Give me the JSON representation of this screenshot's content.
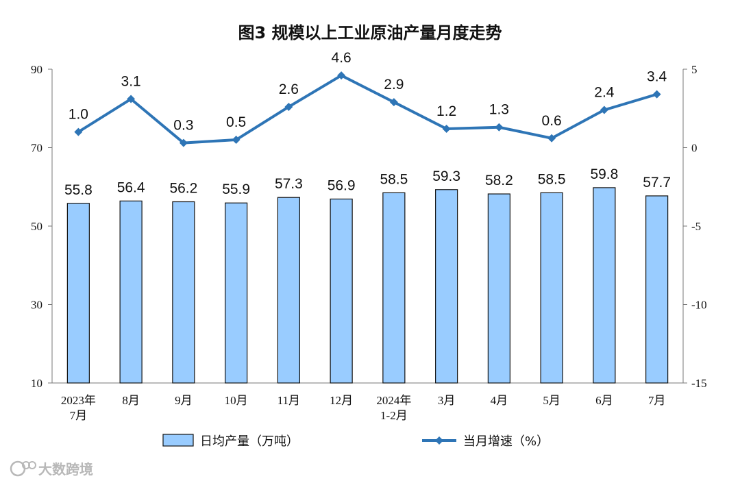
{
  "chart_data": {
    "type": "bar+line",
    "title": "图3  规模以上工业原油产量月度走势",
    "categories": [
      [
        "2023年",
        "7月"
      ],
      [
        "8月"
      ],
      [
        "9月"
      ],
      [
        "10月"
      ],
      [
        "11月"
      ],
      [
        "12月"
      ],
      [
        "2024年",
        "1-2月"
      ],
      [
        "3月"
      ],
      [
        "4月"
      ],
      [
        "5月"
      ],
      [
        "6月"
      ],
      [
        "7月"
      ]
    ],
    "series": [
      {
        "name": "日均产量（万吨）",
        "type": "bar",
        "axis": "left",
        "color": "#99ccff",
        "values": [
          55.8,
          56.4,
          56.2,
          55.9,
          57.3,
          56.9,
          58.5,
          59.3,
          58.2,
          58.5,
          59.8,
          57.7
        ]
      },
      {
        "name": "当月增速（%）",
        "type": "line",
        "axis": "right",
        "color": "#2e75b6",
        "values": [
          1.0,
          3.1,
          0.3,
          0.5,
          2.6,
          4.6,
          2.9,
          1.2,
          1.3,
          0.6,
          2.4,
          3.4
        ]
      }
    ],
    "y_left": {
      "range": [
        10,
        90
      ],
      "ticks": [
        10,
        30,
        50,
        70,
        90
      ]
    },
    "y_right": {
      "range": [
        -15,
        5
      ],
      "ticks": [
        -15,
        -10,
        -5,
        0,
        5
      ]
    },
    "legend_position": "bottom",
    "grid": false
  },
  "watermark": "大数跨境"
}
